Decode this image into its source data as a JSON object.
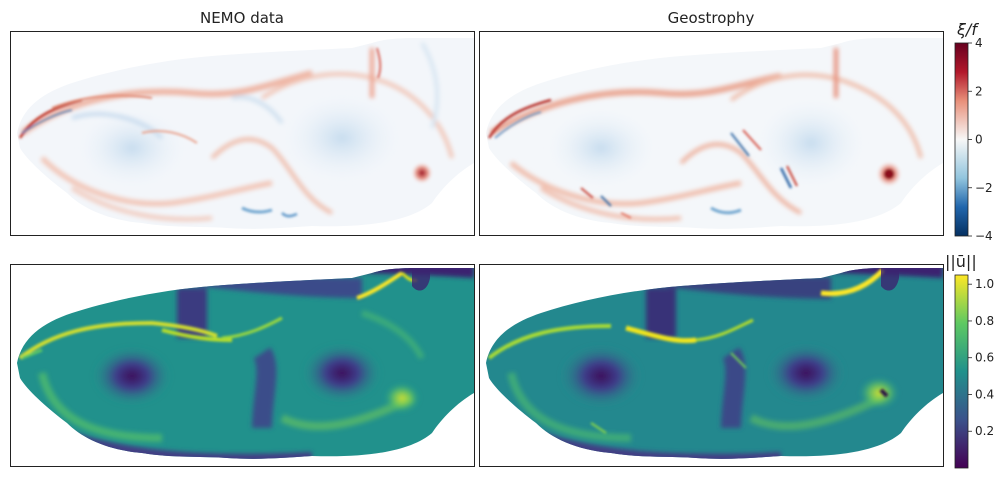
{
  "chart_data": {
    "type": "heatmap",
    "columns": [
      "NEMO data",
      "Geostrophy"
    ],
    "rows": [
      {
        "variable": "ξ/f",
        "colormap": "RdBu_r",
        "colorbar": {
          "label": "ξ/f",
          "range": [
            -4,
            4
          ],
          "ticks": [
            "4",
            "2",
            "0",
            "−2",
            "−4"
          ],
          "tick_values": [
            4,
            2,
            0,
            -2,
            -4
          ]
        },
        "colors": {
          "low": "#053061",
          "mid": "#f7f7f7",
          "high": "#67001f"
        }
      },
      {
        "variable": "||u||",
        "colormap": "viridis",
        "colorbar": {
          "label": "||ū||",
          "range": [
            0,
            1.05
          ],
          "ticks": [
            "1.0",
            "0.8",
            "0.6",
            "0.4",
            "0.2"
          ],
          "tick_values": [
            1.0,
            0.8,
            0.6,
            0.4,
            0.2
          ]
        },
        "colors": {
          "low": "#440154",
          "mid": "#21918c",
          "high": "#fde725"
        }
      }
    ],
    "grid": false,
    "legend": "right colorbars"
  }
}
